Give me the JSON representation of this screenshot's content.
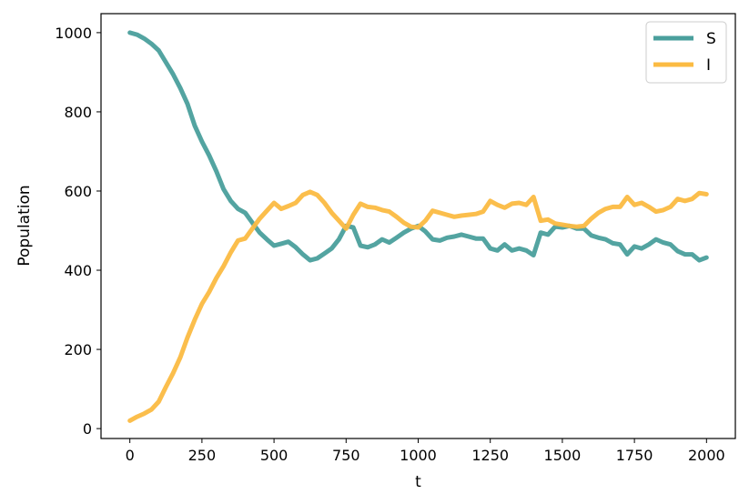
{
  "chart_data": {
    "type": "line",
    "title": "",
    "xlabel": "t",
    "ylabel": "Population",
    "xlim": [
      -100,
      2100
    ],
    "ylim": [
      -25,
      1048
    ],
    "xticks": [
      0,
      250,
      500,
      750,
      1000,
      1250,
      1500,
      1750,
      2000
    ],
    "yticks": [
      0,
      200,
      400,
      600,
      800,
      1000
    ],
    "grid": false,
    "legend": "upper right",
    "series": [
      {
        "name": "S",
        "color": "#4a9f9c",
        "points": [
          [
            0,
            1000
          ],
          [
            25,
            995
          ],
          [
            50,
            985
          ],
          [
            75,
            972
          ],
          [
            100,
            955
          ],
          [
            125,
            925
          ],
          [
            150,
            895
          ],
          [
            175,
            860
          ],
          [
            200,
            820
          ],
          [
            225,
            765
          ],
          [
            250,
            725
          ],
          [
            275,
            690
          ],
          [
            300,
            650
          ],
          [
            325,
            605
          ],
          [
            350,
            575
          ],
          [
            375,
            555
          ],
          [
            400,
            545
          ],
          [
            425,
            520
          ],
          [
            450,
            495
          ],
          [
            475,
            478
          ],
          [
            500,
            462
          ],
          [
            525,
            467
          ],
          [
            550,
            472
          ],
          [
            575,
            458
          ],
          [
            600,
            440
          ],
          [
            625,
            425
          ],
          [
            650,
            430
          ],
          [
            675,
            442
          ],
          [
            700,
            455
          ],
          [
            725,
            478
          ],
          [
            750,
            512
          ],
          [
            775,
            508
          ],
          [
            800,
            462
          ],
          [
            825,
            458
          ],
          [
            850,
            465
          ],
          [
            875,
            478
          ],
          [
            900,
            470
          ],
          [
            925,
            482
          ],
          [
            950,
            495
          ],
          [
            975,
            505
          ],
          [
            1000,
            512
          ],
          [
            1025,
            498
          ],
          [
            1050,
            478
          ],
          [
            1075,
            475
          ],
          [
            1100,
            482
          ],
          [
            1125,
            485
          ],
          [
            1150,
            490
          ],
          [
            1175,
            485
          ],
          [
            1200,
            480
          ],
          [
            1225,
            480
          ],
          [
            1250,
            455
          ],
          [
            1275,
            450
          ],
          [
            1300,
            465
          ],
          [
            1325,
            450
          ],
          [
            1350,
            455
          ],
          [
            1375,
            450
          ],
          [
            1400,
            438
          ],
          [
            1425,
            495
          ],
          [
            1450,
            490
          ],
          [
            1475,
            510
          ],
          [
            1500,
            508
          ],
          [
            1525,
            512
          ],
          [
            1550,
            505
          ],
          [
            1575,
            505
          ],
          [
            1600,
            488
          ],
          [
            1625,
            482
          ],
          [
            1650,
            478
          ],
          [
            1675,
            468
          ],
          [
            1700,
            465
          ],
          [
            1725,
            440
          ],
          [
            1750,
            460
          ],
          [
            1775,
            455
          ],
          [
            1800,
            465
          ],
          [
            1825,
            478
          ],
          [
            1850,
            470
          ],
          [
            1875,
            465
          ],
          [
            1900,
            448
          ],
          [
            1925,
            440
          ],
          [
            1950,
            440
          ],
          [
            1975,
            425
          ],
          [
            2000,
            432
          ]
        ]
      },
      {
        "name": "I",
        "color": "#fbbb42",
        "points": [
          [
            0,
            20
          ],
          [
            25,
            30
          ],
          [
            50,
            38
          ],
          [
            75,
            48
          ],
          [
            100,
            68
          ],
          [
            125,
            105
          ],
          [
            150,
            140
          ],
          [
            175,
            180
          ],
          [
            200,
            230
          ],
          [
            225,
            275
          ],
          [
            250,
            315
          ],
          [
            275,
            345
          ],
          [
            300,
            380
          ],
          [
            325,
            410
          ],
          [
            350,
            445
          ],
          [
            375,
            475
          ],
          [
            400,
            480
          ],
          [
            425,
            505
          ],
          [
            450,
            530
          ],
          [
            475,
            550
          ],
          [
            500,
            570
          ],
          [
            525,
            555
          ],
          [
            550,
            562
          ],
          [
            575,
            570
          ],
          [
            600,
            590
          ],
          [
            625,
            598
          ],
          [
            650,
            590
          ],
          [
            675,
            570
          ],
          [
            700,
            545
          ],
          [
            725,
            525
          ],
          [
            750,
            505
          ],
          [
            775,
            540
          ],
          [
            800,
            568
          ],
          [
            825,
            560
          ],
          [
            850,
            558
          ],
          [
            875,
            552
          ],
          [
            900,
            548
          ],
          [
            925,
            535
          ],
          [
            950,
            520
          ],
          [
            975,
            510
          ],
          [
            1000,
            508
          ],
          [
            1025,
            525
          ],
          [
            1050,
            550
          ],
          [
            1075,
            545
          ],
          [
            1100,
            540
          ],
          [
            1125,
            535
          ],
          [
            1150,
            538
          ],
          [
            1175,
            540
          ],
          [
            1200,
            542
          ],
          [
            1225,
            548
          ],
          [
            1250,
            575
          ],
          [
            1275,
            565
          ],
          [
            1300,
            558
          ],
          [
            1325,
            568
          ],
          [
            1350,
            570
          ],
          [
            1375,
            565
          ],
          [
            1400,
            585
          ],
          [
            1425,
            525
          ],
          [
            1450,
            528
          ],
          [
            1475,
            518
          ],
          [
            1500,
            515
          ],
          [
            1525,
            512
          ],
          [
            1550,
            510
          ],
          [
            1575,
            512
          ],
          [
            1600,
            530
          ],
          [
            1625,
            545
          ],
          [
            1650,
            555
          ],
          [
            1675,
            560
          ],
          [
            1700,
            560
          ],
          [
            1725,
            585
          ],
          [
            1750,
            565
          ],
          [
            1775,
            570
          ],
          [
            1800,
            560
          ],
          [
            1825,
            548
          ],
          [
            1850,
            552
          ],
          [
            1875,
            560
          ],
          [
            1900,
            580
          ],
          [
            1925,
            575
          ],
          [
            1950,
            580
          ],
          [
            1975,
            595
          ],
          [
            2000,
            592
          ]
        ]
      }
    ]
  }
}
